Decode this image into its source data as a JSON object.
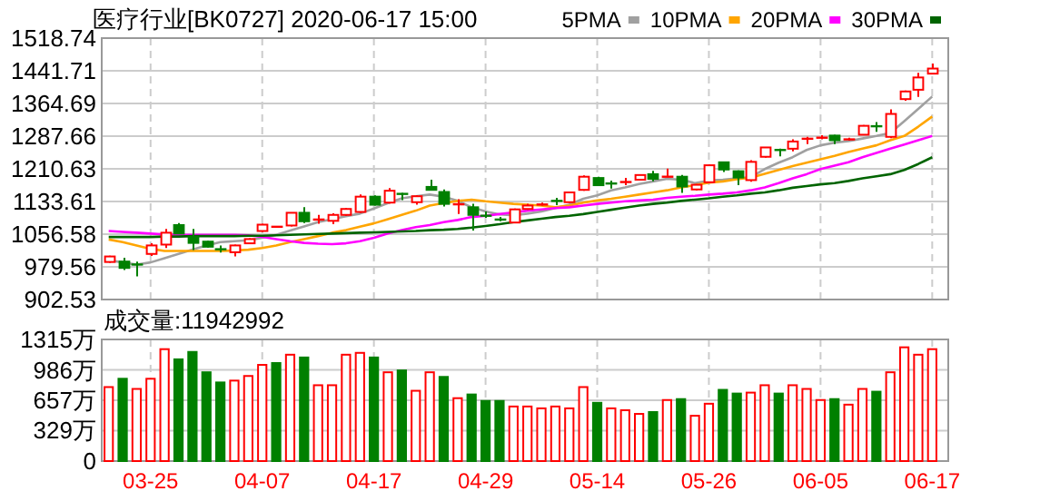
{
  "chart_data": [
    {
      "type": "candlestick",
      "title": "医疗行业[BK0727] 2020-06-17 15:00",
      "categories": [
        null,
        null,
        null,
        null,
        null,
        null,
        null,
        null,
        null,
        null,
        null,
        null,
        null,
        null,
        null,
        null,
        null,
        null,
        null,
        null,
        null,
        null,
        null,
        null,
        null,
        null,
        null,
        null,
        null,
        null,
        null,
        null,
        null,
        null,
        null,
        null,
        null,
        null,
        null,
        null,
        null,
        null,
        null,
        null,
        null,
        null,
        null,
        null,
        null,
        null,
        null,
        null,
        null,
        null,
        null,
        null,
        null,
        null,
        null,
        null
      ],
      "ohlc": [
        [
          991,
          1006,
          989,
          1004
        ],
        [
          992,
          1001,
          972,
          977
        ],
        [
          986,
          992,
          957,
          984
        ],
        [
          1010,
          1035,
          1005,
          1030
        ],
        [
          1032,
          1069,
          1024,
          1060
        ],
        [
          1078,
          1083,
          1058,
          1058
        ],
        [
          1050,
          1069,
          1019,
          1036
        ],
        [
          1039,
          1041,
          1025,
          1027
        ],
        [
          1022,
          1030,
          1013,
          1020
        ],
        [
          1014,
          1032,
          1004,
          1030
        ],
        [
          1035,
          1047,
          1033,
          1045
        ],
        [
          1064,
          1081,
          1062,
          1079
        ],
        [
          1073,
          1076,
          1072,
          1075
        ],
        [
          1077,
          1108,
          1075,
          1107
        ],
        [
          1107,
          1120,
          1083,
          1087
        ],
        [
          1090,
          1102,
          1081,
          1092
        ],
        [
          1088,
          1106,
          1080,
          1102
        ],
        [
          1102,
          1118,
          1100,
          1116
        ],
        [
          1109,
          1150,
          1107,
          1145
        ],
        [
          1145,
          1148,
          1124,
          1126
        ],
        [
          1131,
          1165,
          1129,
          1159
        ],
        [
          1153,
          1154,
          1137,
          1150
        ],
        [
          1132,
          1148,
          1126,
          1146
        ],
        [
          1168,
          1185,
          1160,
          1161
        ],
        [
          1156,
          1162,
          1122,
          1128
        ],
        [
          1126,
          1139,
          1104,
          1128
        ],
        [
          1120,
          1128,
          1065,
          1102
        ],
        [
          1101,
          1110,
          1095,
          1099
        ],
        [
          1092,
          1097,
          1087,
          1090
        ],
        [
          1084,
          1117,
          1082,
          1115
        ],
        [
          1116,
          1128,
          1114,
          1124
        ],
        [
          1125,
          1131,
          1124,
          1128
        ],
        [
          1136,
          1142,
          1125,
          1134
        ],
        [
          1132,
          1157,
          1130,
          1155
        ],
        [
          1161,
          1195,
          1159,
          1192
        ],
        [
          1189,
          1192,
          1170,
          1172
        ],
        [
          1177,
          1183,
          1164,
          1175
        ],
        [
          1178,
          1189,
          1172,
          1181
        ],
        [
          1185,
          1197,
          1184,
          1196
        ],
        [
          1198,
          1206,
          1181,
          1187
        ],
        [
          1191,
          1211,
          1191,
          1193
        ],
        [
          1192,
          1196,
          1154,
          1169
        ],
        [
          1162,
          1175,
          1160,
          1173
        ],
        [
          1179,
          1221,
          1177,
          1219
        ],
        [
          1226,
          1228,
          1203,
          1209
        ],
        [
          1205,
          1207,
          1172,
          1190
        ],
        [
          1184,
          1231,
          1180,
          1227
        ],
        [
          1239,
          1262,
          1237,
          1261
        ],
        [
          1257,
          1258,
          1240,
          1253
        ],
        [
          1258,
          1280,
          1252,
          1275
        ],
        [
          1280,
          1286,
          1269,
          1283
        ],
        [
          1283,
          1290,
          1280,
          1285
        ],
        [
          1289,
          1291,
          1269,
          1278
        ],
        [
          1279,
          1284,
          1277,
          1281
        ],
        [
          1291,
          1314,
          1290,
          1312
        ],
        [
          1313,
          1321,
          1298,
          1309
        ],
        [
          1286,
          1351,
          1283,
          1340
        ],
        [
          1375,
          1395,
          1371,
          1393
        ],
        [
          1397,
          1437,
          1380,
          1426
        ],
        [
          1435,
          1459,
          1433,
          1447
        ]
      ],
      "colors": [
        "#ff0000",
        "#008000",
        "#008000",
        "#ff0000",
        "#ff0000",
        "#008000",
        "#008000",
        "#008000",
        "#008000",
        "#ff0000",
        "#ff0000",
        "#ff0000",
        "#ff0000",
        "#ff0000",
        "#008000",
        "#ff0000",
        "#ff0000",
        "#ff0000",
        "#ff0000",
        "#008000",
        "#ff0000",
        "#008000",
        "#ff0000",
        "#008000",
        "#008000",
        "#ff0000",
        "#008000",
        "#008000",
        "#008000",
        "#ff0000",
        "#ff0000",
        "#ff0000",
        "#008000",
        "#ff0000",
        "#ff0000",
        "#008000",
        "#008000",
        "#ff0000",
        "#ff0000",
        "#008000",
        "#ff0000",
        "#008000",
        "#ff0000",
        "#ff0000",
        "#008000",
        "#008000",
        "#ff0000",
        "#ff0000",
        "#008000",
        "#ff0000",
        "#ff0000",
        "#ff0000",
        "#008000",
        "#ff0000",
        "#ff0000",
        "#008000",
        "#ff0000",
        "#ff0000",
        "#ff0000",
        "#ff0000"
      ],
      "series": [
        {
          "name": "5PMA",
          "type": "line",
          "color": "#a0a0a0",
          "values": [
            995,
            990,
            985,
            990,
            1000,
            1010,
            1020,
            1030,
            1038,
            1040,
            1042,
            1048,
            1055,
            1065,
            1075,
            1085,
            1092,
            1099,
            1105,
            1117,
            1130,
            1141,
            1146,
            1150,
            1145,
            1135,
            1120,
            1110,
            1103,
            1101,
            1105,
            1110,
            1118,
            1126,
            1140,
            1148,
            1160,
            1167,
            1175,
            1181,
            1187,
            1185,
            1177,
            1183,
            1185,
            1188,
            1191,
            1210,
            1225,
            1238,
            1255,
            1266,
            1272,
            1276,
            1282,
            1288,
            1295,
            1323,
            1352,
            1381
          ]
        },
        {
          "name": "10PMA",
          "type": "line",
          "color": "#ffa500",
          "values": [
            1044,
            1038,
            1030,
            1022,
            1017,
            1017,
            1017,
            1017,
            1017,
            1018,
            1020,
            1024,
            1030,
            1038,
            1045,
            1052,
            1060,
            1066,
            1074,
            1082,
            1092,
            1102,
            1112,
            1124,
            1130,
            1135,
            1138,
            1134,
            1131,
            1128,
            1126,
            1124,
            1120,
            1124,
            1131,
            1136,
            1140,
            1145,
            1150,
            1155,
            1160,
            1167,
            1172,
            1178,
            1181,
            1186,
            1190,
            1199,
            1208,
            1217,
            1225,
            1233,
            1241,
            1250,
            1258,
            1266,
            1278,
            1288,
            1310,
            1334
          ]
        },
        {
          "name": "20PMA",
          "type": "line",
          "color": "#ff00ff",
          "values": [
            1064,
            1062,
            1060,
            1058,
            1056,
            1055,
            1055,
            1055,
            1055,
            1055,
            1054,
            1050,
            1045,
            1040,
            1036,
            1034,
            1033,
            1035,
            1040,
            1048,
            1058,
            1066,
            1073,
            1078,
            1085,
            1090,
            1097,
            1100,
            1104,
            1108,
            1112,
            1115,
            1118,
            1120,
            1124,
            1128,
            1131,
            1134,
            1136,
            1138,
            1142,
            1145,
            1147,
            1150,
            1152,
            1155,
            1160,
            1167,
            1177,
            1188,
            1198,
            1210,
            1218,
            1226,
            1238,
            1248,
            1258,
            1268,
            1278,
            1288
          ]
        },
        {
          "name": "30PMA",
          "type": "line",
          "color": "#006400",
          "values": [
            1050,
            1050,
            1050,
            1050,
            1051,
            1051,
            1052,
            1052,
            1052,
            1052,
            1053,
            1053,
            1054,
            1055,
            1056,
            1057,
            1058,
            1059,
            1060,
            1061,
            1062,
            1063,
            1064,
            1066,
            1067,
            1069,
            1072,
            1076,
            1080,
            1085,
            1089,
            1093,
            1097,
            1100,
            1104,
            1109,
            1114,
            1119,
            1124,
            1128,
            1131,
            1135,
            1138,
            1141,
            1145,
            1148,
            1152,
            1155,
            1160,
            1166,
            1170,
            1174,
            1177,
            1182,
            1188,
            1193,
            1198,
            1208,
            1222,
            1238
          ]
        }
      ],
      "ylim": [
        902.53,
        1518.74
      ],
      "yticks": [
        902.53,
        979.56,
        1056.58,
        1133.61,
        1210.63,
        1287.66,
        1364.69,
        1441.71,
        1518.74
      ],
      "grid": true,
      "legend": "top right",
      "tick_labels": "y"
    },
    {
      "type": "bar",
      "title": "成交量:11942992",
      "categories": [
        null,
        null,
        null,
        "03-25",
        null,
        null,
        null,
        null,
        null,
        null,
        null,
        "04-07",
        null,
        null,
        null,
        null,
        null,
        null,
        null,
        "04-17",
        null,
        null,
        null,
        null,
        null,
        null,
        null,
        "04-29",
        null,
        null,
        null,
        null,
        null,
        null,
        null,
        "05-14",
        null,
        null,
        null,
        null,
        null,
        null,
        null,
        "05-26",
        null,
        null,
        null,
        null,
        null,
        null,
        null,
        "06-05",
        null,
        null,
        null,
        null,
        null,
        null,
        null,
        "06-17"
      ],
      "values": [
        800,
        890,
        780,
        890,
        1210,
        1100,
        1180,
        960,
        850,
        870,
        920,
        1040,
        1060,
        1150,
        1120,
        820,
        820,
        1150,
        1170,
        1120,
        960,
        980,
        760,
        960,
        910,
        680,
        720,
        650,
        650,
        590,
        590,
        570,
        590,
        570,
        800,
        630,
        570,
        550,
        510,
        530,
        660,
        670,
        490,
        620,
        770,
        730,
        740,
        820,
        730,
        820,
        780,
        660,
        670,
        610,
        780,
        750,
        960,
        1230,
        1150,
        1210
      ],
      "colors": [
        "#ff0000",
        "#008000",
        "#ff0000",
        "#ff0000",
        "#ff0000",
        "#008000",
        "#008000",
        "#008000",
        "#008000",
        "#ff0000",
        "#ff0000",
        "#ff0000",
        "#008000",
        "#ff0000",
        "#008000",
        "#ff0000",
        "#ff0000",
        "#ff0000",
        "#ff0000",
        "#008000",
        "#ff0000",
        "#008000",
        "#ff0000",
        "#ff0000",
        "#008000",
        "#ff0000",
        "#008000",
        "#008000",
        "#008000",
        "#ff0000",
        "#ff0000",
        "#ff0000",
        "#ff0000",
        "#ff0000",
        "#ff0000",
        "#008000",
        "#ff0000",
        "#ff0000",
        "#ff0000",
        "#008000",
        "#ff0000",
        "#008000",
        "#ff0000",
        "#ff0000",
        "#008000",
        "#008000",
        "#ff0000",
        "#ff0000",
        "#008000",
        "#ff0000",
        "#ff0000",
        "#ff0000",
        "#008000",
        "#ff0000",
        "#ff0000",
        "#008000",
        "#ff0000",
        "#ff0000",
        "#ff0000",
        "#ff0000"
      ],
      "ylim": [
        0,
        1315
      ],
      "yticks": [
        0,
        {
          "value": 329,
          "label": "329万"
        },
        {
          "value": 657,
          "label": "657万"
        },
        {
          "value": 986,
          "label": "986万"
        },
        {
          "value": 1315,
          "label": "1315万"
        }
      ],
      "grid": true
    }
  ]
}
